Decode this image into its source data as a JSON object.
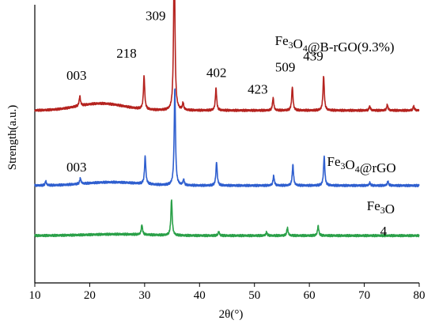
{
  "chart_data": {
    "type": "line",
    "title": "",
    "xlabel": "2θ(°)",
    "ylabel": "Strength(a.u.)",
    "xlim": [
      10,
      80
    ],
    "xticks": [
      10,
      20,
      30,
      40,
      50,
      60,
      70,
      80
    ],
    "ylim": [
      0,
      1
    ],
    "show_yticks": false,
    "grid": false,
    "legend": "none",
    "series": [
      {
        "name": "Fe3O4@B-rGO(9.3%)",
        "color": "#b5231f",
        "baseline": 0.62,
        "hump": {
          "center": 22,
          "width": 6,
          "height": 0.025
        },
        "peaks": [
          [
            18.2,
            0.035
          ],
          [
            29.9,
            0.12
          ],
          [
            35.4,
            0.6
          ],
          [
            37.0,
            0.025
          ],
          [
            43.0,
            0.08
          ],
          [
            53.4,
            0.045
          ],
          [
            56.9,
            0.085
          ],
          [
            62.6,
            0.125
          ],
          [
            71.0,
            0.015
          ],
          [
            74.2,
            0.02
          ],
          [
            79.0,
            0.015
          ]
        ]
      },
      {
        "name": "Fe3O4@rGO",
        "color": "#2f5fcf",
        "baseline": 0.35,
        "hump": {
          "center": 24,
          "width": 7,
          "height": 0.012
        },
        "peaks": [
          [
            12.0,
            0.015
          ],
          [
            18.3,
            0.02
          ],
          [
            30.1,
            0.1
          ],
          [
            35.5,
            0.35
          ],
          [
            37.1,
            0.02
          ],
          [
            43.1,
            0.085
          ],
          [
            53.5,
            0.035
          ],
          [
            57.0,
            0.075
          ],
          [
            62.7,
            0.105
          ],
          [
            71.0,
            0.01
          ],
          [
            74.3,
            0.015
          ]
        ]
      },
      {
        "name": "Fe3O",
        "color": "#2aa048",
        "baseline": 0.17,
        "hump": {
          "center": 25,
          "width": 8,
          "height": 0.005
        },
        "peaks": [
          [
            29.5,
            0.035
          ],
          [
            34.9,
            0.13
          ],
          [
            43.5,
            0.015
          ],
          [
            52.2,
            0.012
          ],
          [
            56.0,
            0.028
          ],
          [
            61.6,
            0.035
          ]
        ]
      }
    ],
    "annotations": [
      {
        "text": "003",
        "x": 17.6,
        "y": 0.73
      },
      {
        "text": "218",
        "x": 26.7,
        "y": 0.81
      },
      {
        "text": "309",
        "x": 32.0,
        "y": 0.945
      },
      {
        "text": "402",
        "x": 43.1,
        "y": 0.74
      },
      {
        "text": "423",
        "x": 50.6,
        "y": 0.68
      },
      {
        "text": "509",
        "x": 55.6,
        "y": 0.76
      },
      {
        "text": "439",
        "x": 60.7,
        "y": 0.8
      },
      {
        "text": "003",
        "x": 17.6,
        "y": 0.4
      }
    ],
    "series_labels": [
      {
        "series": 0,
        "text": "Fe3O4@B-rGO(9.3%)",
        "x": 64.6,
        "y": 0.855
      },
      {
        "series": 1,
        "text": "Fe3O4@rGO",
        "x": 69.5,
        "y": 0.42
      },
      {
        "series": 2,
        "text": "Fe3O",
        "x": 73.0,
        "y": 0.262
      },
      {
        "series": 2,
        "text": "4",
        "x": 73.5,
        "y": 0.17
      }
    ]
  }
}
